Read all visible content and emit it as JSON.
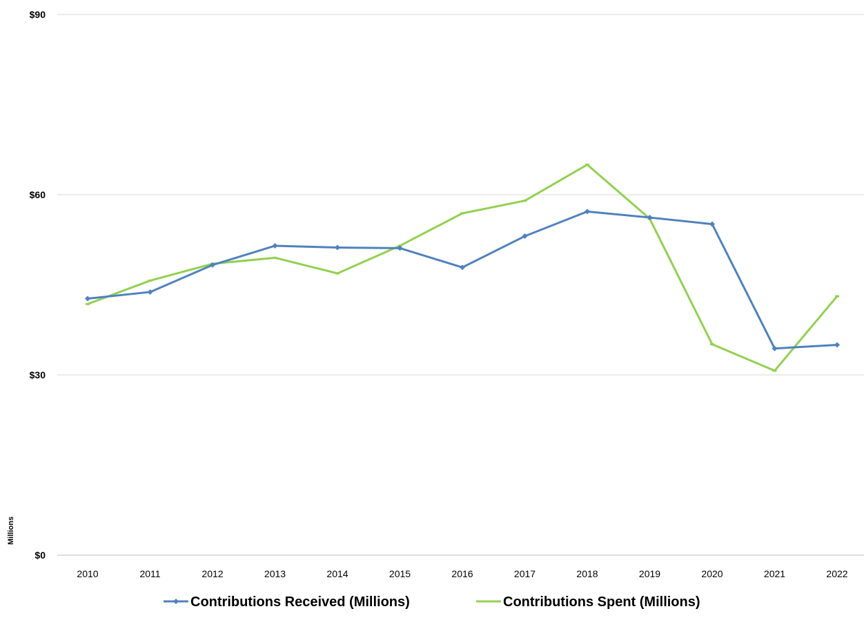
{
  "chart_data": {
    "type": "line",
    "title": "",
    "xlabel": "",
    "ylabel": "Millions",
    "categories": [
      "2010",
      "2011",
      "2012",
      "2013",
      "2014",
      "2015",
      "2016",
      "2017",
      "2018",
      "2019",
      "2020",
      "2021",
      "2022"
    ],
    "ylim": [
      0,
      90
    ],
    "yticks": [
      0,
      30,
      60,
      90
    ],
    "ytick_labels": [
      "$0",
      "$30",
      "$60",
      "$90"
    ],
    "grid": true,
    "legend_position": "bottom",
    "series": [
      {
        "name": "Contributions Received (Millions)",
        "color": "#4f81bd",
        "marker": "diamond",
        "values": [
          42.7,
          43.8,
          48.3,
          51.5,
          51.2,
          51.1,
          47.9,
          53.1,
          57.2,
          56.2,
          55.1,
          34.4,
          35.0
        ]
      },
      {
        "name": "Contributions Spent (Millions)",
        "color": "#92d050",
        "marker": "dash",
        "values": [
          41.8,
          45.7,
          48.5,
          49.5,
          46.9,
          51.5,
          56.9,
          59.0,
          65.0,
          56.0,
          35.1,
          30.7,
          43.1
        ]
      }
    ]
  }
}
